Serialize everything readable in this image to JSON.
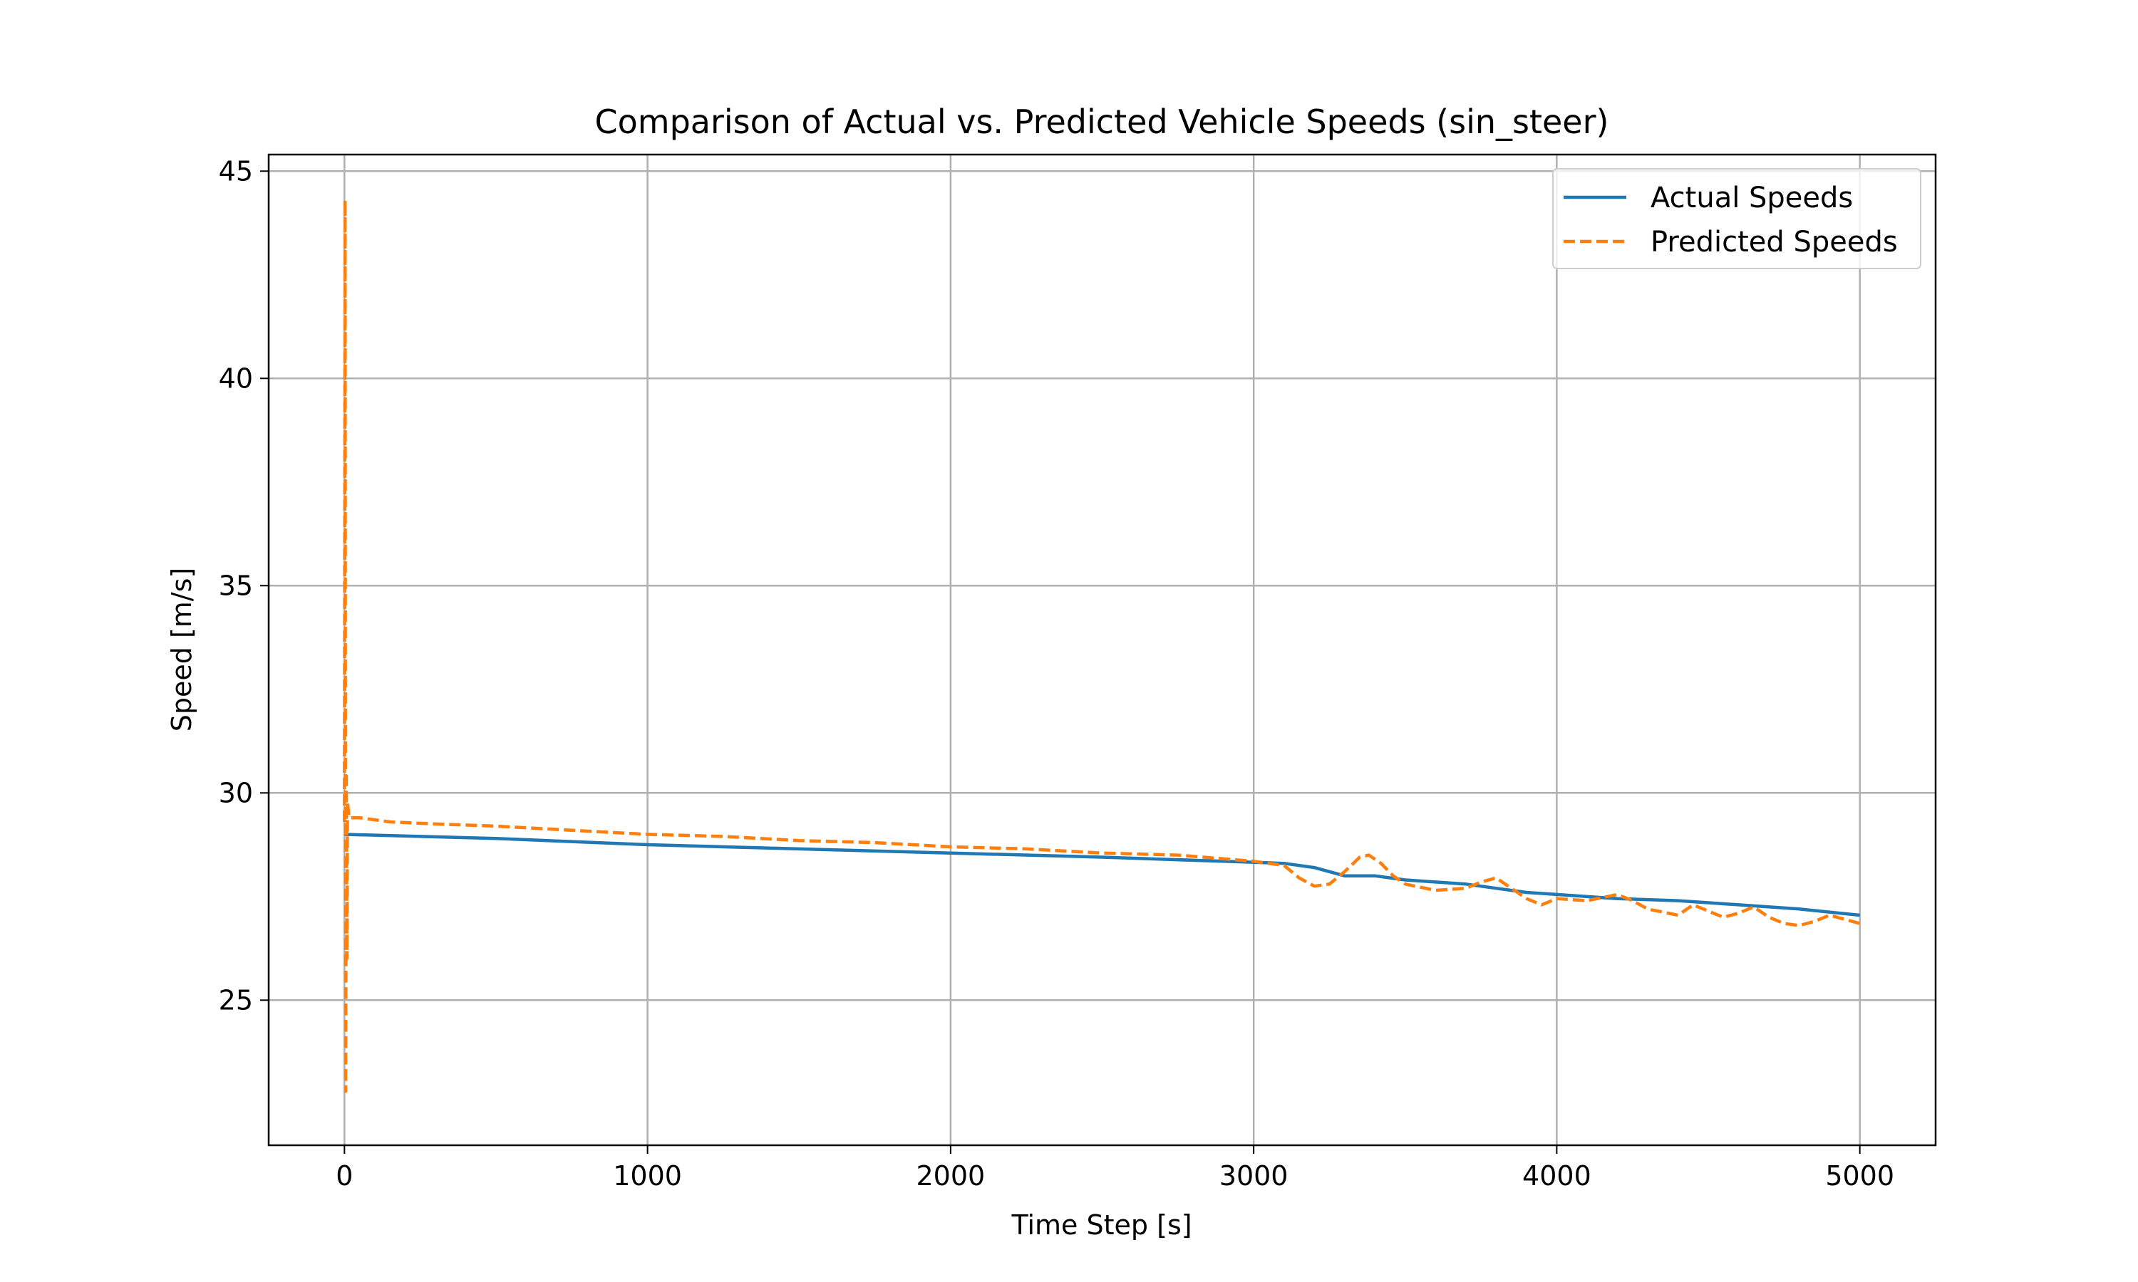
{
  "chart_data": {
    "type": "line",
    "title": "Comparison of Actual vs. Predicted Vehicle Speeds (sin_steer)",
    "xlabel": "Time Step [s]",
    "ylabel": "Speed [m/s]",
    "xlim": [
      -250,
      5250
    ],
    "ylim": [
      21.5,
      45.4
    ],
    "xticks": [
      0,
      1000,
      2000,
      3000,
      4000,
      5000
    ],
    "yticks": [
      25,
      30,
      35,
      40,
      45
    ],
    "grid": true,
    "legend_position": "top-right",
    "series": [
      {
        "name": "Actual Speeds",
        "color": "#1f77b4",
        "style": "solid",
        "x": [
          0,
          500,
          1000,
          1500,
          2000,
          2500,
          2900,
          3100,
          3200,
          3300,
          3400,
          3500,
          3600,
          3700,
          3800,
          3900,
          4000,
          4200,
          4400,
          4600,
          4800,
          5000
        ],
        "y": [
          29.0,
          28.9,
          28.75,
          28.65,
          28.55,
          28.45,
          28.35,
          28.3,
          28.2,
          28.0,
          28.0,
          27.9,
          27.85,
          27.8,
          27.7,
          27.6,
          27.55,
          27.45,
          27.4,
          27.3,
          27.2,
          27.05
        ]
      },
      {
        "name": "Predicted Speeds",
        "color": "#ff7f0e",
        "style": "dashed",
        "x": [
          0,
          2,
          4,
          6,
          8,
          10,
          15,
          50,
          150,
          300,
          500,
          750,
          1000,
          1250,
          1500,
          1750,
          2000,
          2250,
          2500,
          2750,
          3000,
          3100,
          3150,
          3200,
          3250,
          3300,
          3350,
          3380,
          3420,
          3460,
          3500,
          3600,
          3700,
          3750,
          3800,
          3850,
          3900,
          3950,
          4000,
          4100,
          4200,
          4250,
          4300,
          4400,
          4450,
          4500,
          4550,
          4600,
          4650,
          4700,
          4750,
          4800,
          4850,
          4900,
          4950,
          5000
        ],
        "y": [
          29.3,
          44.3,
          22.8,
          30.5,
          26.0,
          29.8,
          29.4,
          29.4,
          29.3,
          29.25,
          29.2,
          29.1,
          29.0,
          28.95,
          28.85,
          28.8,
          28.7,
          28.65,
          28.55,
          28.5,
          28.35,
          28.25,
          27.95,
          27.75,
          27.8,
          28.1,
          28.45,
          28.5,
          28.3,
          28.0,
          27.8,
          27.65,
          27.7,
          27.85,
          27.95,
          27.7,
          27.45,
          27.3,
          27.45,
          27.4,
          27.55,
          27.4,
          27.2,
          27.05,
          27.3,
          27.15,
          27.0,
          27.1,
          27.25,
          27.0,
          26.85,
          26.8,
          26.9,
          27.05,
          26.95,
          26.85
        ]
      }
    ]
  }
}
